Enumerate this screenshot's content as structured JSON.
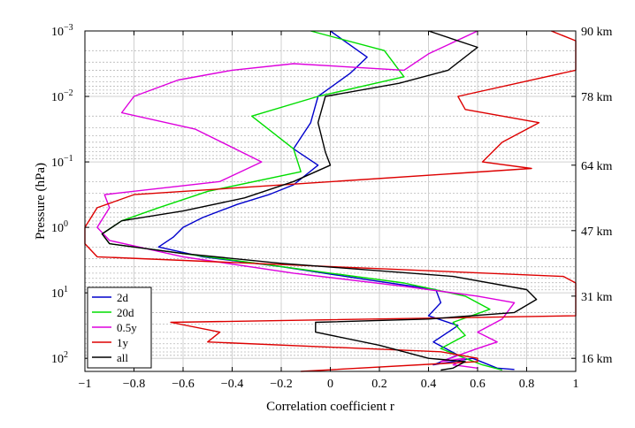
{
  "chart_data": {
    "type": "line",
    "xlabel": "Correlation coefficient r",
    "ylabel": "Pressure (hPa)",
    "xlim": [
      -1,
      1
    ],
    "ylim_log10": [
      -3,
      2.2
    ],
    "y_scale": "log",
    "y_inverted": true,
    "grid": true,
    "legend_position": "bottom-left",
    "x_ticks": [
      {
        "value": -1,
        "label": "−1"
      },
      {
        "value": -0.8,
        "label": "−0.8"
      },
      {
        "value": -0.6,
        "label": "−0.6"
      },
      {
        "value": -0.4,
        "label": "−0.4"
      },
      {
        "value": -0.2,
        "label": "−0.2"
      },
      {
        "value": 0,
        "label": "0"
      },
      {
        "value": 0.2,
        "label": "0.2"
      },
      {
        "value": 0.4,
        "label": "0.4"
      },
      {
        "value": 0.6,
        "label": "0.6"
      },
      {
        "value": 0.8,
        "label": "0.8"
      },
      {
        "value": 1,
        "label": "1"
      }
    ],
    "y_ticks": [
      {
        "exp": -3,
        "base": "10",
        "sup": "−3"
      },
      {
        "exp": -2,
        "base": "10",
        "sup": "−2"
      },
      {
        "exp": -1,
        "base": "10",
        "sup": "−1"
      },
      {
        "exp": 0,
        "base": "10",
        "sup": "0"
      },
      {
        "exp": 1,
        "base": "10",
        "sup": "1"
      },
      {
        "exp": 2,
        "base": "10",
        "sup": "2"
      }
    ],
    "altitude_ticks": [
      {
        "log_p": -3,
        "label": "90 km"
      },
      {
        "log_p": -2,
        "label": "78 km"
      },
      {
        "log_p": -0.95,
        "label": "64 km"
      },
      {
        "log_p": 0.05,
        "label": "47 km"
      },
      {
        "log_p": 1.05,
        "label": "31 km"
      },
      {
        "log_p": 2.0,
        "label": "16 km"
      }
    ],
    "series": [
      {
        "name": "2d",
        "color": "#0000cc",
        "points": [
          [
            0,
            -3
          ],
          [
            0.15,
            -2.6
          ],
          [
            0.08,
            -2.35
          ],
          [
            -0.05,
            -2.0
          ],
          [
            -0.08,
            -1.6
          ],
          [
            -0.15,
            -1.2
          ],
          [
            -0.05,
            -0.95
          ],
          [
            -0.15,
            -0.65
          ],
          [
            -0.25,
            -0.5
          ],
          [
            -0.38,
            -0.35
          ],
          [
            -0.52,
            -0.15
          ],
          [
            -0.6,
            0
          ],
          [
            -0.64,
            0.15
          ],
          [
            -0.7,
            0.3
          ],
          [
            -0.52,
            0.45
          ],
          [
            -0.2,
            0.6
          ],
          [
            0.15,
            0.8
          ],
          [
            0.43,
            0.95
          ],
          [
            0.45,
            1.15
          ],
          [
            0.4,
            1.35
          ],
          [
            0.52,
            1.5
          ],
          [
            0.42,
            1.75
          ],
          [
            0.52,
            1.95
          ],
          [
            0.42,
            2.1
          ],
          [
            0.58,
            2.0
          ],
          [
            0.68,
            2.15
          ],
          [
            0.75,
            2.17
          ]
        ]
      },
      {
        "name": "20d",
        "color": "#00dd00",
        "points": [
          [
            -0.08,
            -3
          ],
          [
            0.22,
            -2.7
          ],
          [
            0.3,
            -2.3
          ],
          [
            -0.05,
            -2.0
          ],
          [
            -0.32,
            -1.7
          ],
          [
            -0.15,
            -1.2
          ],
          [
            -0.12,
            -0.85
          ],
          [
            -0.5,
            -0.55
          ],
          [
            -0.7,
            -0.3
          ],
          [
            -0.85,
            -0.1
          ],
          [
            -0.93,
            0.1
          ],
          [
            -0.9,
            0.25
          ],
          [
            -0.5,
            0.45
          ],
          [
            -0.1,
            0.65
          ],
          [
            0.3,
            0.85
          ],
          [
            0.55,
            1.05
          ],
          [
            0.65,
            1.25
          ],
          [
            0.5,
            1.45
          ],
          [
            0.55,
            1.65
          ],
          [
            0.45,
            1.85
          ],
          [
            0.55,
            2.0
          ],
          [
            0.62,
            2.1
          ],
          [
            0.7,
            2.18
          ]
        ]
      },
      {
        "name": "0.5y",
        "color": "#dd00dd",
        "points": [
          [
            0.6,
            -3
          ],
          [
            0.4,
            -2.65
          ],
          [
            0.3,
            -2.4
          ],
          [
            -0.15,
            -2.5
          ],
          [
            -0.4,
            -2.4
          ],
          [
            -0.62,
            -2.25
          ],
          [
            -0.8,
            -2.0
          ],
          [
            -0.85,
            -1.75
          ],
          [
            -0.55,
            -1.5
          ],
          [
            -0.28,
            -1.0
          ],
          [
            -0.45,
            -0.7
          ],
          [
            -0.92,
            -0.5
          ],
          [
            -0.9,
            -0.3
          ],
          [
            -0.95,
            0
          ],
          [
            -0.9,
            0.2
          ],
          [
            -0.6,
            0.45
          ],
          [
            -0.15,
            0.7
          ],
          [
            0.3,
            0.9
          ],
          [
            0.6,
            1.05
          ],
          [
            0.75,
            1.15
          ],
          [
            0.7,
            1.4
          ],
          [
            0.6,
            1.6
          ],
          [
            0.68,
            1.75
          ],
          [
            0.6,
            1.85
          ],
          [
            0.45,
            2.05
          ],
          [
            0.55,
            2.0
          ],
          [
            0.5,
            2.1
          ],
          [
            0.6,
            2.15
          ]
        ]
      },
      {
        "name": "1y",
        "color": "#dd0000",
        "points": [
          [
            0.9,
            -3
          ],
          [
            1.0,
            -2.85
          ],
          [
            1.0,
            -2.4
          ],
          [
            0.52,
            -2.0
          ],
          [
            0.55,
            -1.8
          ],
          [
            0.85,
            -1.6
          ],
          [
            0.7,
            -1.3
          ],
          [
            0.62,
            -1.0
          ],
          [
            0.82,
            -0.9
          ],
          [
            -0.8,
            -0.5
          ],
          [
            -0.95,
            -0.3
          ],
          [
            -1.0,
            0
          ],
          [
            -1.0,
            0.25
          ],
          [
            -0.95,
            0.45
          ],
          [
            0.95,
            0.75
          ],
          [
            1.0,
            0.85
          ],
          [
            1.0,
            1.35
          ],
          [
            -0.65,
            1.45
          ],
          [
            -0.45,
            1.6
          ],
          [
            -0.5,
            1.75
          ],
          [
            0.45,
            1.9
          ],
          [
            0.6,
            2.0
          ],
          [
            0.6,
            2.05
          ],
          [
            -0.12,
            2.2
          ]
        ]
      },
      {
        "name": "all",
        "color": "#000000",
        "points": [
          [
            0.4,
            -3
          ],
          [
            0.6,
            -2.75
          ],
          [
            0.48,
            -2.4
          ],
          [
            0.28,
            -2.2
          ],
          [
            -0.02,
            -2.0
          ],
          [
            -0.05,
            -1.6
          ],
          [
            -0.02,
            -1.15
          ],
          [
            0,
            -0.95
          ],
          [
            -0.15,
            -0.7
          ],
          [
            -0.35,
            -0.45
          ],
          [
            -0.6,
            -0.25
          ],
          [
            -0.85,
            -0.1
          ],
          [
            -0.93,
            0.1
          ],
          [
            -0.9,
            0.25
          ],
          [
            -0.6,
            0.4
          ],
          [
            -0.2,
            0.55
          ],
          [
            0.5,
            0.75
          ],
          [
            0.8,
            0.95
          ],
          [
            0.84,
            1.1
          ],
          [
            0.75,
            1.3
          ],
          [
            0.4,
            1.4
          ],
          [
            -0.06,
            1.45
          ],
          [
            -0.06,
            1.6
          ],
          [
            0.2,
            1.8
          ],
          [
            0.4,
            2.0
          ],
          [
            0.55,
            2.05
          ],
          [
            0.5,
            2.15
          ],
          [
            0.45,
            2.18
          ]
        ]
      }
    ]
  }
}
